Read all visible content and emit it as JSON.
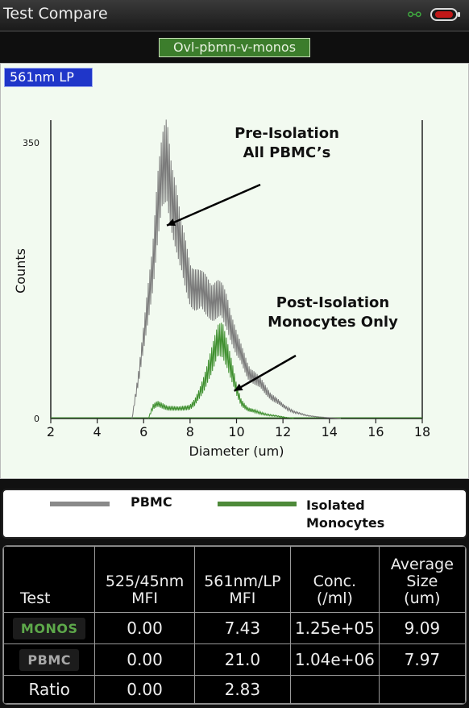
{
  "title": "Test Compare",
  "file_name": "Ovl-pbmn-v-monos",
  "channel_label": "561nm LP",
  "colors": {
    "pbmc": "#7a7a7a",
    "monos": "#3e8f2e",
    "file_bg": "#3c7d2c",
    "channel_bg": "#1f36c9",
    "battery": "#c01818"
  },
  "icons": {
    "usb": "usb-icon",
    "battery": "battery-icon"
  },
  "chart_data": {
    "type": "line",
    "xlabel": "Diameter (um)",
    "ylabel": "Counts",
    "xlim": [
      2,
      18
    ],
    "ylim": [
      0,
      350
    ],
    "xticks": [
      "2",
      "4",
      "6",
      "8",
      "10",
      "12",
      "14",
      "16",
      "18"
    ],
    "yticks": [
      "0",
      "350"
    ],
    "series": [
      {
        "name": "PBMC",
        "x": [
          5.5,
          5.6,
          5.8,
          6.0,
          6.2,
          6.4,
          6.6,
          6.8,
          7.0,
          7.2,
          7.4,
          7.6,
          7.8,
          8.0,
          8.2,
          8.4,
          8.6,
          8.8,
          9.0,
          9.2,
          9.4,
          9.6,
          9.8,
          10.0,
          10.2,
          10.5,
          11.0,
          11.5,
          12.0,
          12.5,
          13.0,
          13.5,
          14.0,
          14.5
        ],
        "values": [
          0,
          20,
          55,
          100,
          150,
          200,
          265,
          305,
          330,
          290,
          255,
          215,
          195,
          175,
          165,
          160,
          158,
          155,
          150,
          150,
          145,
          135,
          115,
          95,
          80,
          60,
          45,
          28,
          16,
          8,
          4,
          2,
          1,
          0
        ]
      },
      {
        "name": "Isolated Monocytes",
        "x": [
          6.2,
          6.4,
          6.6,
          7.0,
          7.5,
          8.0,
          8.2,
          8.4,
          8.6,
          8.8,
          9.0,
          9.2,
          9.4,
          9.6,
          9.8,
          10.0,
          10.2,
          10.5,
          11.0,
          11.5,
          12.0,
          12.5
        ],
        "values": [
          0,
          15,
          18,
          14,
          12,
          15,
          20,
          30,
          45,
          65,
          80,
          95,
          100,
          85,
          60,
          35,
          20,
          12,
          7,
          4,
          2,
          0
        ]
      }
    ],
    "annotations": [
      {
        "text_lines": [
          "Pre-Isolation",
          "All PBMC’s"
        ],
        "target_x": 7.0,
        "target_y": 245
      },
      {
        "text_lines": [
          "Post-Isolation",
          "Monocytes Only"
        ],
        "target_x": 9.9,
        "target_y": 35
      }
    ]
  },
  "legend": [
    {
      "name": "PBMC"
    },
    {
      "name_lines": [
        "Isolated",
        "Monocytes"
      ]
    }
  ],
  "stats_table": {
    "headers": [
      {
        "lines": [
          "Test"
        ]
      },
      {
        "lines": [
          "525/45nm",
          "MFI"
        ]
      },
      {
        "lines": [
          "561nm/LP",
          "MFI"
        ]
      },
      {
        "lines": [
          "Conc.",
          "(/ml)"
        ]
      },
      {
        "lines": [
          "Average",
          "Size",
          "(um)"
        ]
      }
    ],
    "rows": [
      {
        "test": "MONOS",
        "style": "monos",
        "cells": [
          "0.00",
          "7.43",
          "1.25e+05",
          "9.09"
        ]
      },
      {
        "test": "PBMC",
        "style": "pbmc",
        "cells": [
          "0.00",
          "21.0",
          "1.04e+06",
          "7.97"
        ]
      },
      {
        "test": "Ratio",
        "style": "plain",
        "cells": [
          "0.00",
          "2.83",
          "",
          ""
        ]
      }
    ]
  }
}
